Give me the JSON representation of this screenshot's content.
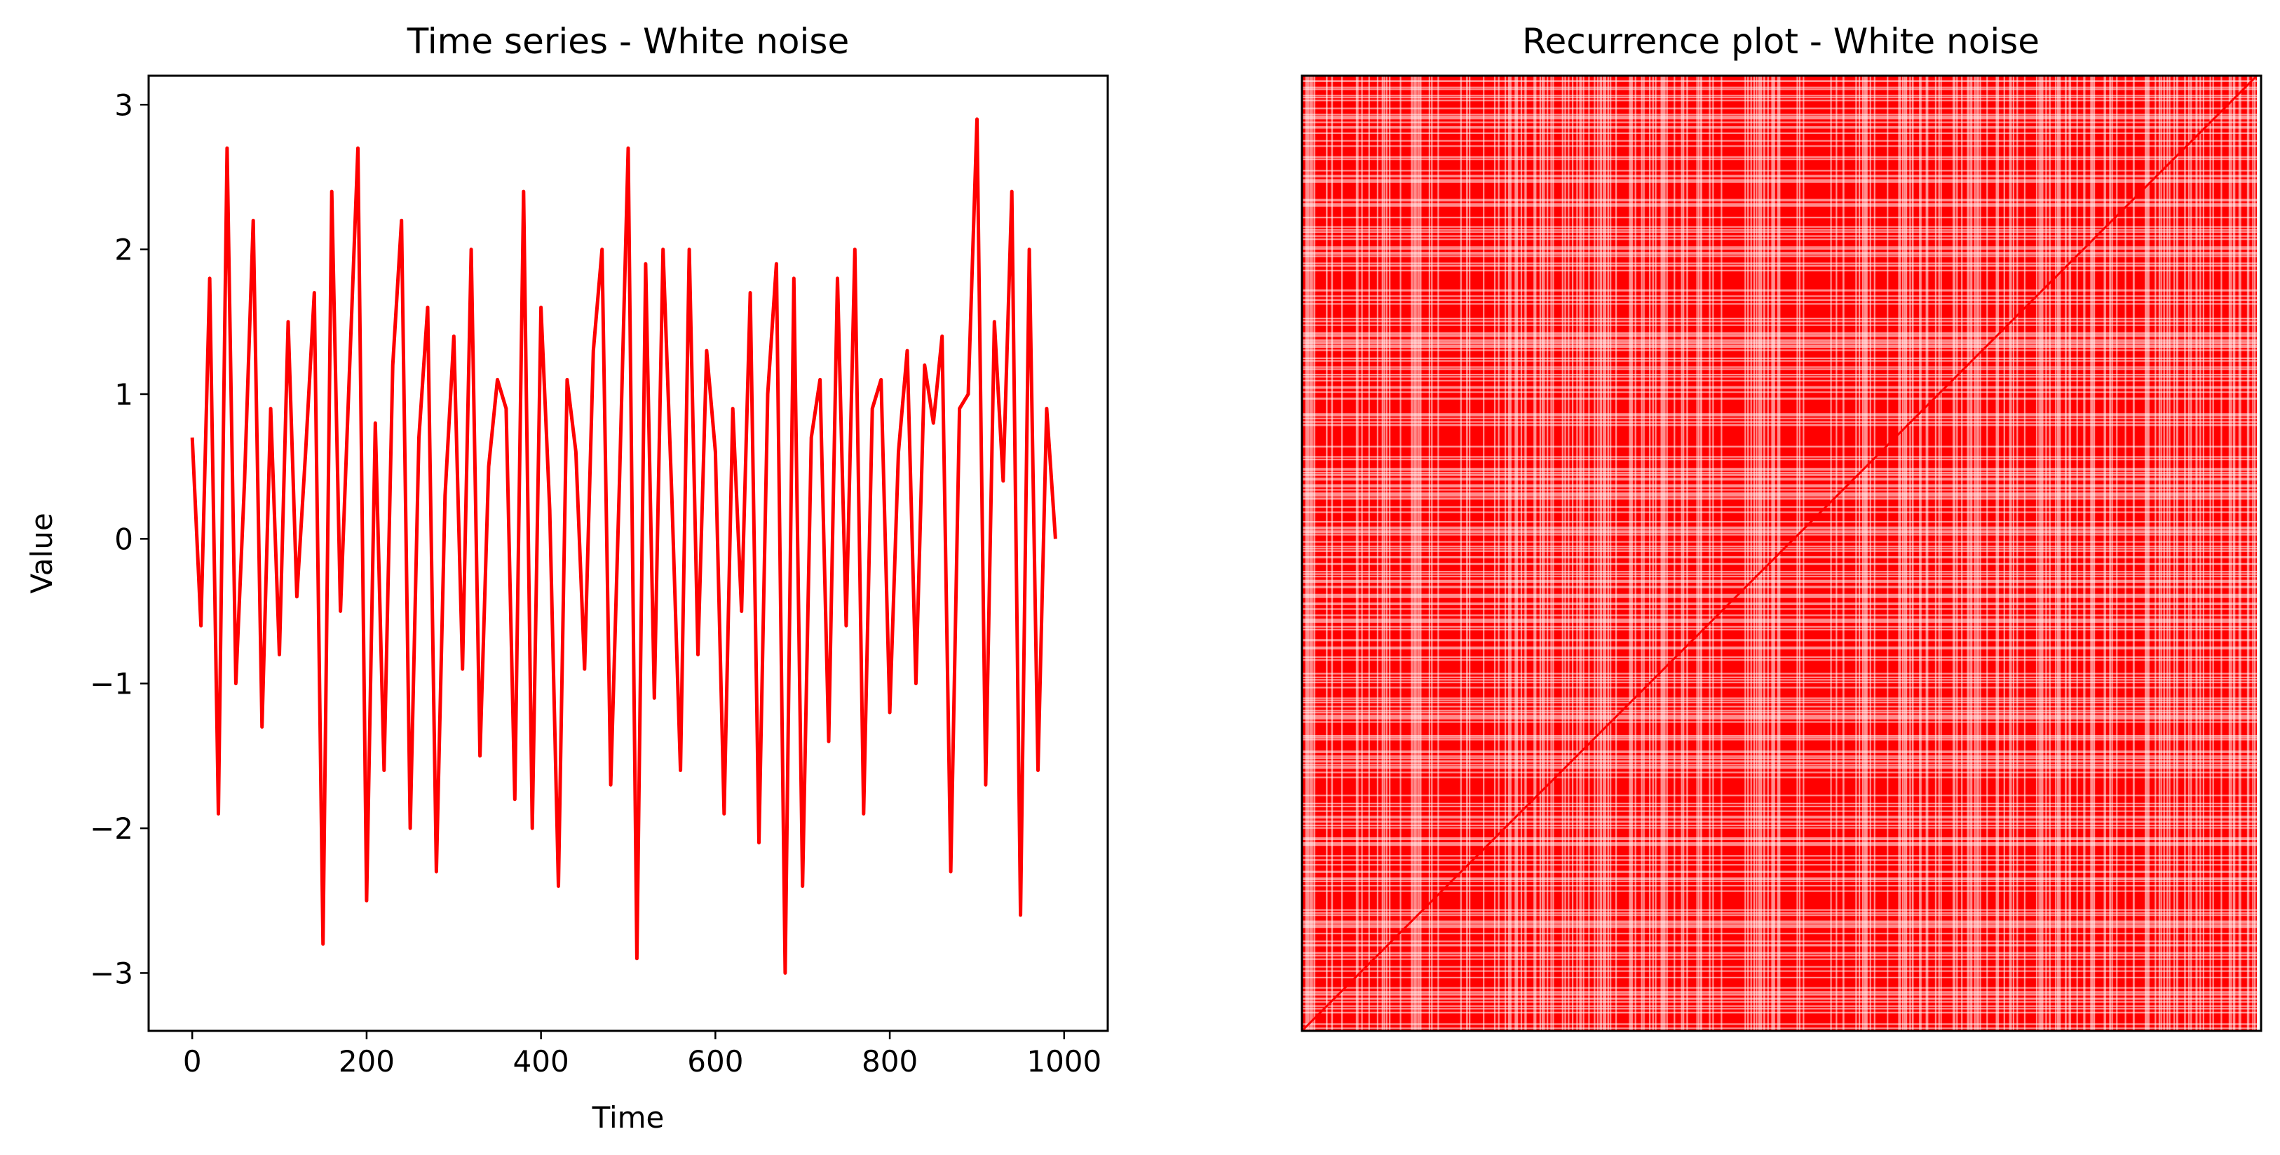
{
  "chart_data": [
    {
      "type": "line",
      "title": "Time series - White noise",
      "xlabel": "Time",
      "ylabel": "Value",
      "xlim": [
        -50,
        1050
      ],
      "ylim": [
        -3.4,
        3.2
      ],
      "xticks": [
        0,
        200,
        400,
        600,
        800,
        1000
      ],
      "xtick_labels": [
        "0",
        "200",
        "400",
        "600",
        "800",
        "1000"
      ],
      "yticks": [
        -3,
        -2,
        -1,
        0,
        1,
        2,
        3
      ],
      "ytick_labels": [
        "−3",
        "−2",
        "−1",
        "0",
        "1",
        "2",
        "3"
      ],
      "grid": false,
      "color": "#ff0000",
      "series": [
        {
          "x_start": 0,
          "x_step": 10,
          "values": [
            0.7,
            -0.6,
            1.8,
            -1.9,
            2.7,
            -1.0,
            0.4,
            2.2,
            -1.3,
            0.9,
            -0.8,
            1.5,
            -0.4,
            0.6,
            1.7,
            -2.8,
            2.4,
            -0.5,
            1.1,
            2.7,
            -2.5,
            0.8,
            -1.6,
            1.2,
            2.2,
            -2.0,
            0.7,
            1.6,
            -2.3,
            0.3,
            1.4,
            -0.9,
            2.0,
            -1.5,
            0.5,
            1.1,
            0.9,
            -1.8,
            2.4,
            -2.0,
            1.6,
            0.2,
            -2.4,
            1.1,
            0.6,
            -0.9,
            1.3,
            2.0,
            -1.7,
            0.4,
            2.7,
            -2.9,
            1.9,
            -1.1,
            2.0,
            0.3,
            -1.6,
            2.0,
            -0.8,
            1.3,
            0.6,
            -1.9,
            0.9,
            -0.5,
            1.7,
            -2.1,
            1.0,
            1.9,
            -3.0,
            1.8,
            -2.4,
            0.7,
            1.1,
            -1.4,
            1.8,
            -0.6,
            2.0,
            -1.9,
            0.9,
            1.1,
            -1.2,
            0.6,
            1.3,
            -1.0,
            1.2,
            0.8,
            1.4,
            -2.3,
            0.9,
            1.0,
            2.9,
            -1.7,
            1.5,
            0.4,
            2.4,
            -2.6,
            2.0,
            -1.6,
            0.9,
            0.0
          ]
        }
      ]
    },
    {
      "type": "heatmap",
      "title": "Recurrence plot - White noise",
      "xlabel": "",
      "ylabel": "",
      "axes_visible": false,
      "colors": [
        "#ffffff",
        "#ff0000"
      ],
      "matrix_size": 1000
    }
  ]
}
